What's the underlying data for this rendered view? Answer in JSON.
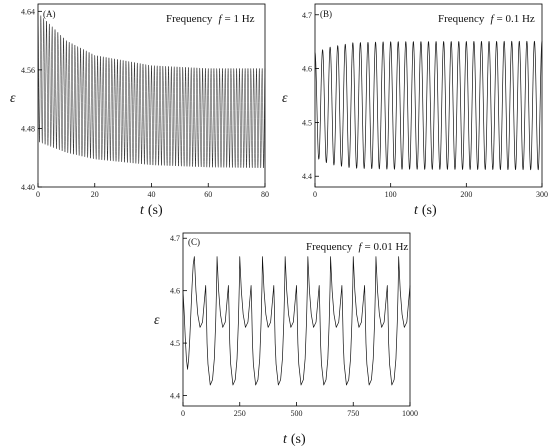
{
  "chart_data": [
    {
      "type": "line",
      "panel_label": "(A)",
      "annotation_prefix": "Frequency",
      "annotation_var": "f",
      "annotation_value": "= 1 Hz",
      "ylabel": "ε",
      "xlabel_var": "t",
      "xlabel_unit": "(s)",
      "xlim": [
        0,
        80
      ],
      "ylim": [
        4.4,
        4.65
      ],
      "xticks": [
        0,
        20,
        40,
        60,
        80
      ],
      "yticks": [
        4.4,
        4.48,
        4.56,
        4.64
      ],
      "ytick_labels": [
        "4.40",
        "4.48",
        "4.56",
        "4.64"
      ],
      "series": [
        {
          "signal": "oscillation",
          "frequency_hz": 1,
          "upper_envelope": {
            "t": [
              0,
              10,
              20,
              40,
              60,
              80
            ],
            "y": [
              4.638,
              4.6,
              4.58,
              4.566,
              4.562,
              4.562
            ]
          },
          "lower_envelope": {
            "t": [
              0,
              10,
              20,
              40,
              60,
              80
            ],
            "y": [
              4.462,
              4.447,
              4.438,
              4.43,
              4.427,
              4.426
            ]
          }
        }
      ]
    },
    {
      "type": "line",
      "panel_label": "(B)",
      "annotation_prefix": "Frequency",
      "annotation_var": "f",
      "annotation_value": "= 0.1 Hz",
      "ylabel": "ε",
      "xlabel_var": "t",
      "xlabel_unit": "(s)",
      "xlim": [
        0,
        300
      ],
      "ylim": [
        4.38,
        4.72
      ],
      "xticks": [
        0,
        100,
        200,
        300
      ],
      "yticks": [
        4.4,
        4.5,
        4.6,
        4.7
      ],
      "ytick_labels": [
        "4.4",
        "4.5",
        "4.6",
        "4.7"
      ],
      "series": [
        {
          "signal": "oscillation",
          "frequency_hz": 0.1,
          "upper_envelope": {
            "t": [
              0,
              20,
              50,
              100,
              300
            ],
            "y": [
              4.63,
              4.64,
              4.648,
              4.65,
              4.651
            ]
          },
          "lower_envelope": {
            "t": [
              0,
              20,
              50,
              100,
              300
            ],
            "y": [
              4.435,
              4.422,
              4.415,
              4.413,
              4.412
            ]
          }
        }
      ]
    },
    {
      "type": "line",
      "panel_label": "(C)",
      "annotation_prefix": "Frequency",
      "annotation_var": "f",
      "annotation_value": "= 0.01 Hz",
      "ylabel": "ε",
      "xlabel_var": "t",
      "xlabel_unit": "(s)",
      "xlim": [
        0,
        1000
      ],
      "ylim": [
        4.38,
        4.71
      ],
      "xticks": [
        0,
        250,
        500,
        750,
        1000
      ],
      "yticks": [
        4.4,
        4.5,
        4.6,
        4.7
      ],
      "ytick_labels": [
        "4.4",
        "4.5",
        "4.6",
        "4.7"
      ],
      "series": [
        {
          "signal": "cycle",
          "period_s": 100,
          "cycle_shape": {
            "phase": [
              0,
              0.07,
              0.15,
              0.25,
              0.36,
              0.44,
              0.5,
              0.53,
              0.56,
              0.6,
              0.7,
              0.8,
              0.88,
              0.94,
              0.98,
              1.0
            ],
            "y": [
              4.665,
              4.6,
              4.555,
              4.53,
              4.54,
              4.58,
              4.61,
              4.56,
              4.5,
              4.46,
              4.42,
              4.43,
              4.47,
              4.54,
              4.61,
              4.665
            ]
          },
          "initial": {
            "t": [
              0,
              5,
              10,
              15,
              20,
              25,
              30,
              35,
              40,
              45,
              50
            ],
            "y": [
              4.6,
              4.56,
              4.51,
              4.47,
              4.45,
              4.47,
              4.51,
              4.56,
              4.61,
              4.65,
              4.665
            ]
          }
        }
      ]
    }
  ]
}
